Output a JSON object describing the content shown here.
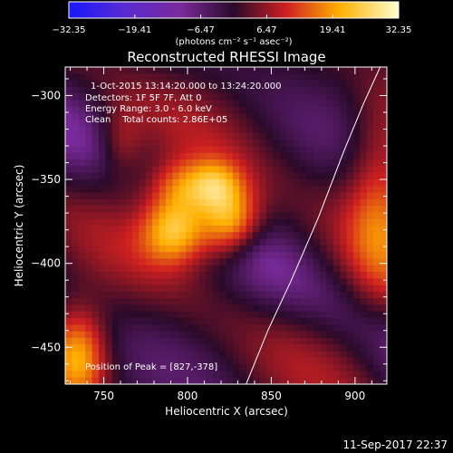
{
  "chart_data": {
    "type": "heatmap",
    "title": "Reconstructed RHESSI Image",
    "xlabel": "Heliocentric X (arcsec)",
    "ylabel": "Heliocentric Y (arcsec)",
    "xlim": [
      727,
      919
    ],
    "ylim": [
      -472,
      -283
    ],
    "x_ticks": [
      750,
      800,
      850,
      900
    ],
    "y_ticks": [
      -300,
      -350,
      -400,
      -450
    ],
    "colorbar": {
      "range": [
        -32.35,
        32.35
      ],
      "ticks": [
        "-32.35",
        "-19.41",
        "-6.47",
        "6.47",
        "19.41",
        "32.35"
      ],
      "unit_label": "(photons cm⁻² s⁻¹ asec⁻²)"
    },
    "annotations": [
      "1-Oct-2015 13:14:20.000 to 13:24:20.000",
      "Detectors: 1F 5F 7F, Att 0",
      "Energy Range: 3.0 - 6.0 keV",
      "Clean    Total counts: 2.86E+05"
    ],
    "peak_text": "Position of Peak = [827,-378]",
    "peak": {
      "x": 827,
      "y": -378,
      "value": 32.35
    },
    "grid": false,
    "sources": [
      {
        "x": 793,
        "y": -380,
        "sx": 14,
        "sy": 14,
        "amp": 24
      },
      {
        "x": 825,
        "y": -376,
        "sx": 13,
        "sy": 15,
        "amp": 26
      },
      {
        "x": 800,
        "y": -355,
        "sx": 18,
        "sy": 12,
        "amp": 18
      },
      {
        "x": 818,
        "y": -352,
        "sx": 10,
        "sy": 10,
        "amp": 8
      }
    ],
    "limb_curve": [
      {
        "x": 835,
        "y": -472
      },
      {
        "x": 848,
        "y": -440
      },
      {
        "x": 862,
        "y": -410
      },
      {
        "x": 878,
        "y": -373
      },
      {
        "x": 893,
        "y": -334
      },
      {
        "x": 905,
        "y": -305
      },
      {
        "x": 915,
        "y": -283
      }
    ]
  },
  "footer": {
    "timestamp": "11-Sep-2017 22:37"
  }
}
